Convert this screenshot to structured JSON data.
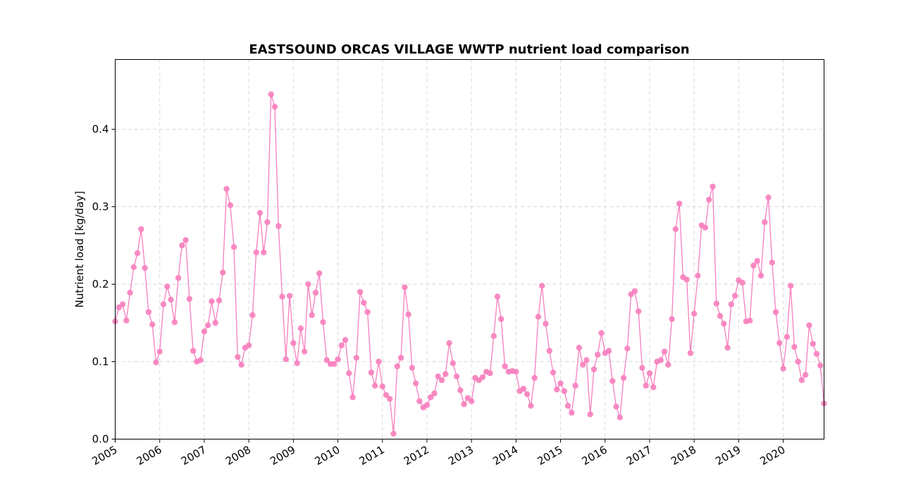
{
  "chart_data": {
    "type": "line",
    "title": "EASTSOUND ORCAS VILLAGE WWTP nutrient load comparison",
    "xlabel": "",
    "ylabel": "Nutrient load [kg/day]",
    "xlim": [
      "2005-01",
      "2020-12"
    ],
    "ylim": [
      0,
      0.49
    ],
    "y_ticks": [
      "0.0",
      "0.1",
      "0.2",
      "0.3",
      "0.4"
    ],
    "x_ticks": [
      "2005",
      "2006",
      "2007",
      "2008",
      "2009",
      "2010",
      "2011",
      "2012",
      "2013",
      "2014",
      "2015",
      "2016",
      "2017",
      "2018",
      "2019",
      "2020"
    ],
    "grid": true,
    "marker": "circle",
    "series": [
      {
        "color": "#f77fbe",
        "x": [
          "2005-01",
          "2005-02",
          "2005-03",
          "2005-04",
          "2005-05",
          "2005-06",
          "2005-07",
          "2005-08",
          "2005-09",
          "2005-10",
          "2005-11",
          "2005-12",
          "2006-01",
          "2006-02",
          "2006-03",
          "2006-04",
          "2006-05",
          "2006-06",
          "2006-07",
          "2006-08",
          "2006-09",
          "2006-10",
          "2006-11",
          "2006-12",
          "2007-01",
          "2007-02",
          "2007-03",
          "2007-04",
          "2007-05",
          "2007-06",
          "2007-07",
          "2007-08",
          "2007-09",
          "2007-10",
          "2007-11",
          "2007-12",
          "2008-01",
          "2008-02",
          "2008-03",
          "2008-04",
          "2008-05",
          "2008-06",
          "2008-07",
          "2008-08",
          "2008-09",
          "2008-10",
          "2008-11",
          "2008-12",
          "2009-01",
          "2009-02",
          "2009-03",
          "2009-04",
          "2009-05",
          "2009-06",
          "2009-07",
          "2009-08",
          "2009-09",
          "2009-10",
          "2009-11",
          "2009-12",
          "2010-01",
          "2010-02",
          "2010-03",
          "2010-04",
          "2010-05",
          "2010-06",
          "2010-07",
          "2010-08",
          "2010-09",
          "2010-10",
          "2010-11",
          "2010-12",
          "2011-01",
          "2011-02",
          "2011-03",
          "2011-04",
          "2011-05",
          "2011-06",
          "2011-07",
          "2011-08",
          "2011-09",
          "2011-10",
          "2011-11",
          "2011-12",
          "2012-01",
          "2012-02",
          "2012-03",
          "2012-04",
          "2012-05",
          "2012-06",
          "2012-07",
          "2012-08",
          "2012-09",
          "2012-10",
          "2012-11",
          "2012-12",
          "2013-01",
          "2013-02",
          "2013-03",
          "2013-04",
          "2013-05",
          "2013-06",
          "2013-07",
          "2013-08",
          "2013-09",
          "2013-10",
          "2013-11",
          "2013-12",
          "2014-01",
          "2014-02",
          "2014-03",
          "2014-04",
          "2014-05",
          "2014-06",
          "2014-07",
          "2014-08",
          "2014-09",
          "2014-10",
          "2014-11",
          "2014-12",
          "2015-01",
          "2015-02",
          "2015-03",
          "2015-04",
          "2015-05",
          "2015-06",
          "2015-07",
          "2015-08",
          "2015-09",
          "2015-10",
          "2015-11",
          "2015-12",
          "2016-01",
          "2016-02",
          "2016-03",
          "2016-04",
          "2016-05",
          "2016-06",
          "2016-07",
          "2016-08",
          "2016-09",
          "2016-10",
          "2016-11",
          "2016-12",
          "2017-01",
          "2017-02",
          "2017-03",
          "2017-04",
          "2017-05",
          "2017-06",
          "2017-07",
          "2017-08",
          "2017-09",
          "2017-10",
          "2017-11",
          "2017-12",
          "2018-01",
          "2018-02",
          "2018-03",
          "2018-04",
          "2018-05",
          "2018-06",
          "2018-07",
          "2018-08",
          "2018-09",
          "2018-10",
          "2018-11",
          "2018-12",
          "2019-01",
          "2019-02",
          "2019-03",
          "2019-04",
          "2019-05",
          "2019-06",
          "2019-07",
          "2019-08",
          "2019-09",
          "2019-10",
          "2019-11",
          "2019-12",
          "2020-01",
          "2020-02",
          "2020-03",
          "2020-04",
          "2020-05",
          "2020-06",
          "2020-07",
          "2020-08",
          "2020-09",
          "2020-10",
          "2020-11",
          "2020-12"
        ],
        "y": [
          0.152,
          0.17,
          0.174,
          0.153,
          0.189,
          0.222,
          0.24,
          0.271,
          0.221,
          0.164,
          0.148,
          0.099,
          0.113,
          0.174,
          0.197,
          0.18,
          0.151,
          0.208,
          0.25,
          0.257,
          0.181,
          0.114,
          0.1,
          0.102,
          0.139,
          0.147,
          0.178,
          0.15,
          0.179,
          0.215,
          0.323,
          0.302,
          0.248,
          0.106,
          0.096,
          0.118,
          0.121,
          0.16,
          0.241,
          0.292,
          0.241,
          0.28,
          0.445,
          0.429,
          0.275,
          0.184,
          0.103,
          0.185,
          0.124,
          0.098,
          0.143,
          0.113,
          0.2,
          0.16,
          0.189,
          0.214,
          0.151,
          0.102,
          0.097,
          0.097,
          0.103,
          0.121,
          0.128,
          0.085,
          0.054,
          0.105,
          0.19,
          0.176,
          0.164,
          0.086,
          0.069,
          0.1,
          0.068,
          0.057,
          0.052,
          0.007,
          0.094,
          0.105,
          0.196,
          0.161,
          0.092,
          0.072,
          0.049,
          0.041,
          0.044,
          0.054,
          0.059,
          0.081,
          0.076,
          0.084,
          0.124,
          0.098,
          0.081,
          0.063,
          0.045,
          0.053,
          0.049,
          0.079,
          0.076,
          0.08,
          0.087,
          0.085,
          0.133,
          0.184,
          0.155,
          0.094,
          0.087,
          0.088,
          0.087,
          0.062,
          0.065,
          0.058,
          0.043,
          0.079,
          0.158,
          0.198,
          0.149,
          0.114,
          0.086,
          0.064,
          0.072,
          0.062,
          0.043,
          0.034,
          0.069,
          0.118,
          0.096,
          0.102,
          0.032,
          0.09,
          0.109,
          0.137,
          0.111,
          0.114,
          0.075,
          0.042,
          0.028,
          0.079,
          0.117,
          0.187,
          0.191,
          0.165,
          0.092,
          0.069,
          0.085,
          0.067,
          0.1,
          0.102,
          0.113,
          0.096,
          0.155,
          0.271,
          0.304,
          0.209,
          0.206,
          0.111,
          0.162,
          0.211,
          0.276,
          0.273,
          0.309,
          0.326,
          0.175,
          0.159,
          0.149,
          0.118,
          0.174,
          0.185,
          0.205,
          0.202,
          0.152,
          0.153,
          0.224,
          0.23,
          0.211,
          0.28,
          0.312,
          0.228,
          0.164,
          0.124,
          0.091,
          0.132,
          0.198,
          0.119,
          0.1,
          0.076,
          0.083,
          0.147,
          0.123,
          0.11,
          0.095,
          0.046
        ]
      }
    ]
  }
}
